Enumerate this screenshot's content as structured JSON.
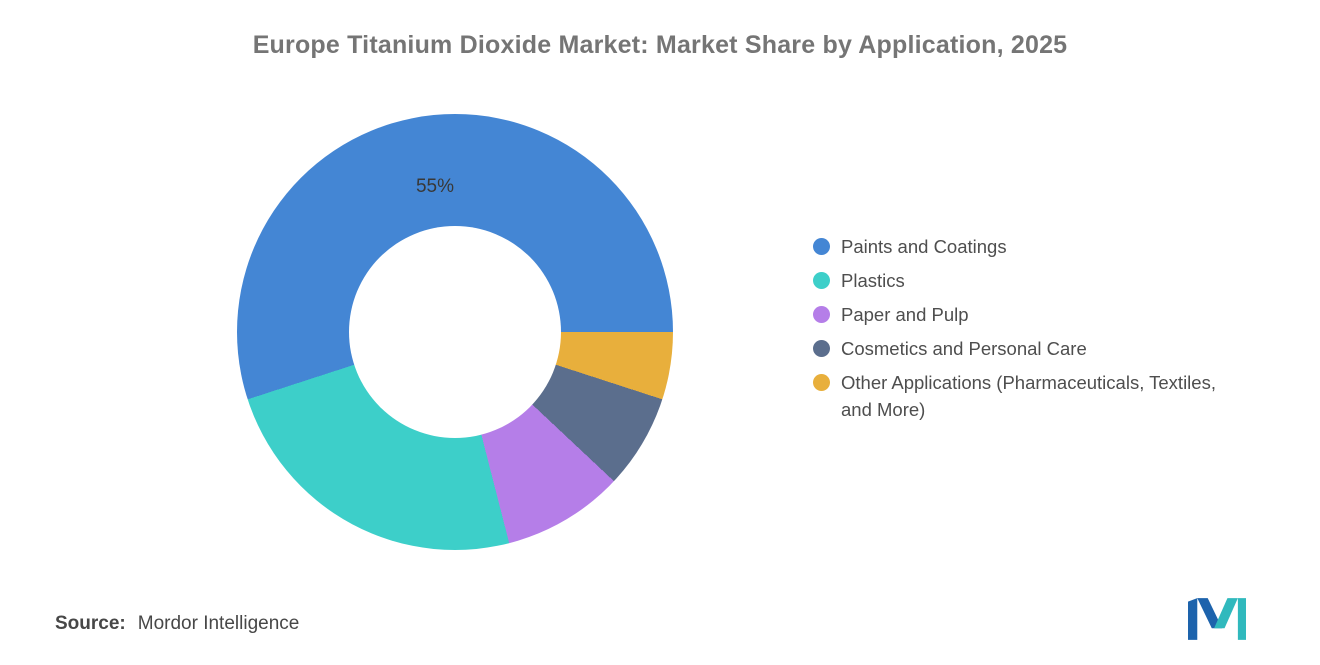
{
  "title": "Europe Titanium Dioxide Market: Market Share by Application, 2025",
  "chart_data": {
    "type": "pie",
    "subtype": "donut",
    "title": "Europe Titanium Dioxide Market: Market Share by Application, 2025",
    "unit": "%",
    "start_angle_deg": 90,
    "direction": "counterclockwise",
    "shown_data_label": "55%",
    "legend_position": "right",
    "hole_ratio": 0.49,
    "segments": [
      {
        "label": "Paints and Coatings",
        "value": 55,
        "color": "#4486D4"
      },
      {
        "label": "Plastics",
        "value": 24,
        "color": "#3DCFC9"
      },
      {
        "label": "Paper and Pulp",
        "value": 9,
        "color": "#B57EE8"
      },
      {
        "label": "Cosmetics and Personal Care",
        "value": 7,
        "color": "#5B6E8D"
      },
      {
        "label": "Other Applications (Pharmaceuticals, Textiles, and More)",
        "value": 5,
        "color": "#E8AF3C"
      }
    ]
  },
  "source": {
    "prefix": "Source:",
    "text": "Mordor Intelligence"
  },
  "logo": {
    "name": "mordor-intelligence-logo",
    "blue": "#1D63AC",
    "teal": "#30B9BD"
  }
}
